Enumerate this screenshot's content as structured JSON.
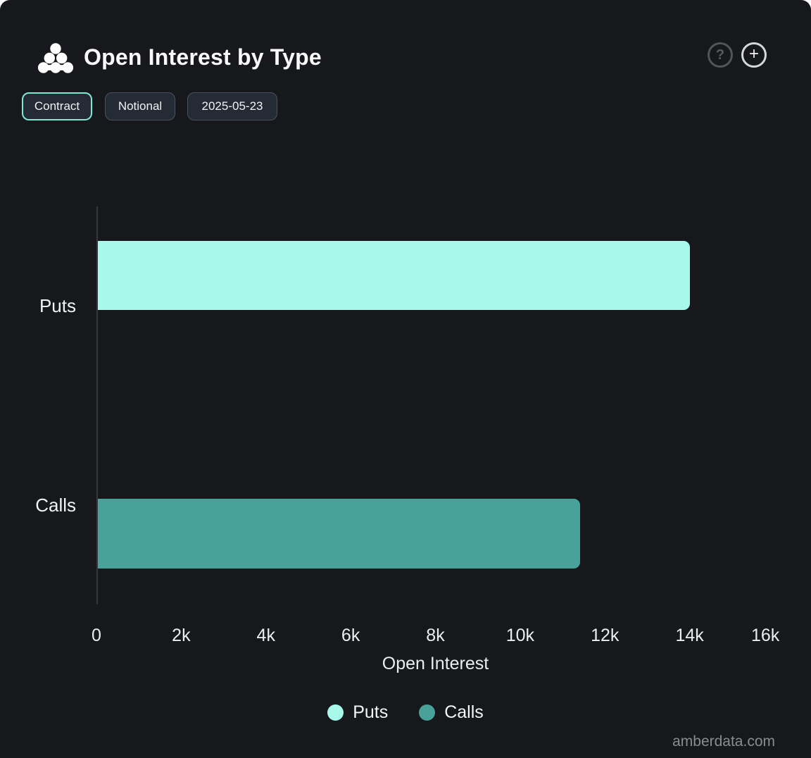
{
  "header": {
    "title": "Open Interest by Type",
    "help_glyph": "?",
    "add_glyph": "+"
  },
  "toolbar": {
    "contract_label": "Contract",
    "notional_label": "Notional",
    "date_label": "2025-05-23"
  },
  "chart_data": {
    "type": "bar",
    "orientation": "horizontal",
    "title": "Open Interest by Type",
    "categories": [
      "Puts",
      "Calls"
    ],
    "values": [
      14000,
      11400
    ],
    "series_colors": [
      "#a9f9eb",
      "#49a29a"
    ],
    "xlabel": "Open Interest",
    "ylabel": "",
    "xlim": [
      0,
      16000
    ],
    "xticks": [
      "0",
      "2k",
      "4k",
      "6k",
      "8k",
      "10k",
      "12k",
      "14k",
      "16k"
    ],
    "grid": false,
    "legend": {
      "position": "bottom",
      "entries": [
        "Puts",
        "Calls"
      ]
    }
  },
  "colors": {
    "background": "#16181b",
    "accent_active": "#7ee8d3",
    "axis_line": "#33383e"
  },
  "watermark": "amberdata.com"
}
